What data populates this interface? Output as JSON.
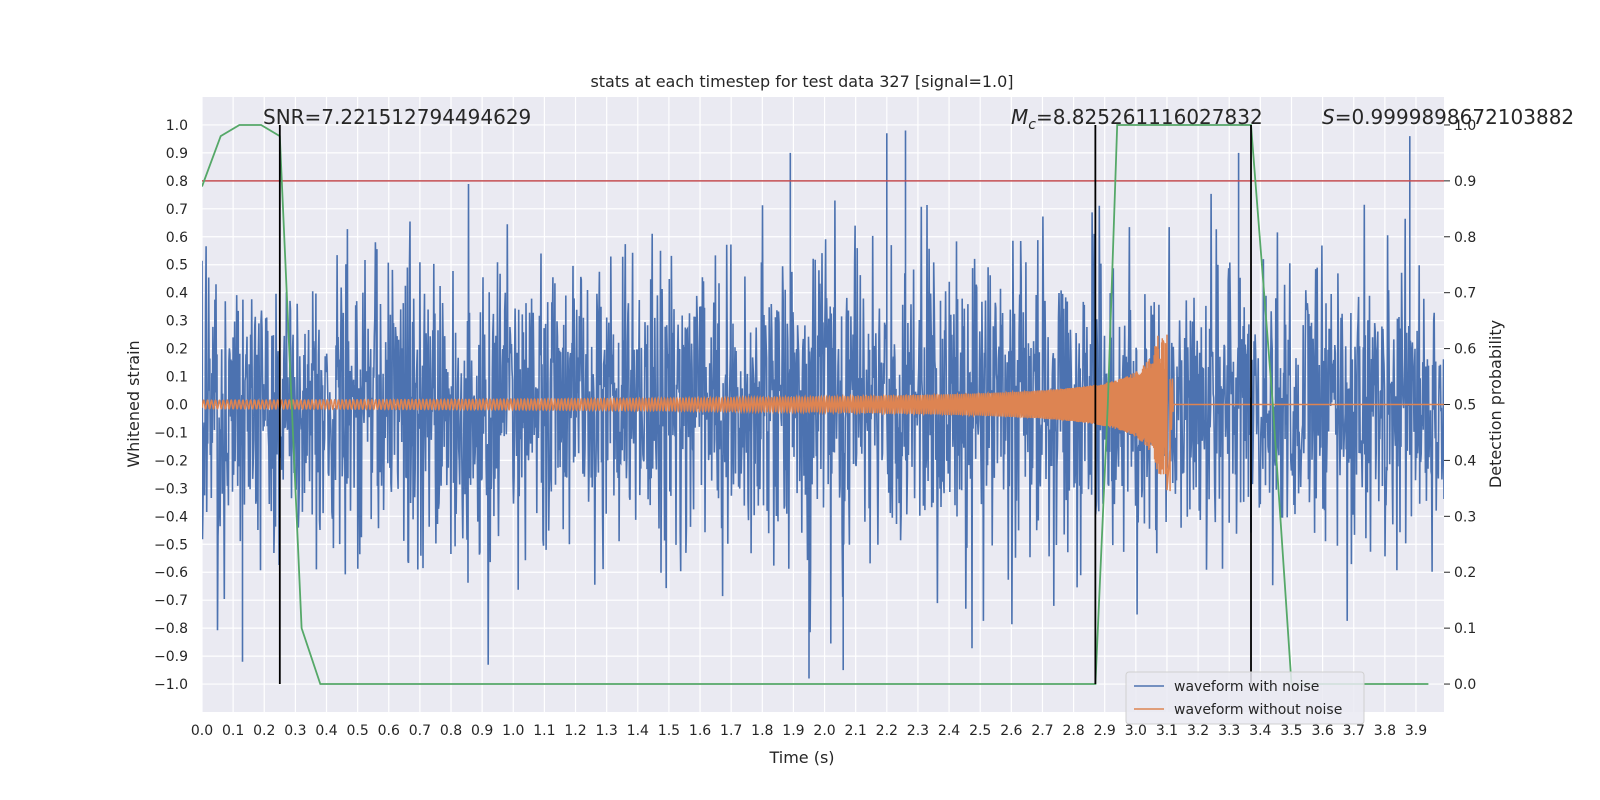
{
  "chart_data": {
    "type": "line",
    "title": "stats at each timestep for test data 327 [signal=1.0]",
    "xlabel": "Time (s)",
    "ylabel": "Whitened strain",
    "ylabel_right": "Detection probability",
    "xlim": [
      0.0,
      3.99
    ],
    "ylim": [
      -1.1,
      1.1
    ],
    "ylim_right": [
      -0.05,
      1.05
    ],
    "x_ticks": [
      0.0,
      0.1,
      0.2,
      0.3,
      0.4,
      0.5,
      0.6,
      0.7,
      0.8,
      0.9,
      1.0,
      1.1,
      1.2,
      1.3,
      1.4,
      1.5,
      1.6,
      1.7,
      1.8,
      1.9,
      2.0,
      2.1,
      2.2,
      2.3,
      2.4,
      2.5,
      2.6,
      2.7,
      2.8,
      2.9,
      3.0,
      3.1,
      3.2,
      3.3,
      3.4,
      3.5,
      3.6,
      3.7,
      3.8,
      3.9
    ],
    "x_tick_labels": [
      "0.0",
      "0.1",
      "0.2",
      "0.3",
      "0.4",
      "0.5",
      "0.6",
      "0.7",
      "0.8",
      "0.9",
      "1.0",
      "1.1",
      "1.2",
      "1.3",
      "1.4",
      "1.5",
      "1.6",
      "1.7",
      "1.8",
      "1.9",
      "2.0",
      "2.1",
      "2.2",
      "2.3",
      "2.4",
      "2.5",
      "2.6",
      "2.7",
      "2.8",
      "2.9",
      "3.0",
      "3.1",
      "3.2",
      "3.3",
      "3.4",
      "3.5",
      "3.6",
      "3.7",
      "3.8",
      "3.9"
    ],
    "y_ticks": [
      1.0,
      0.9,
      0.8,
      0.7,
      0.6,
      0.5,
      0.4,
      0.3,
      0.2,
      0.1,
      0.0,
      -0.1,
      -0.2,
      -0.3,
      -0.4,
      -0.5,
      -0.6,
      -0.7,
      -0.8,
      -0.9,
      -1.0
    ],
    "y_tick_labels": [
      "1.0",
      "0.9",
      "0.8",
      "0.7",
      "0.6",
      "0.5",
      "0.4",
      "0.3",
      "0.2",
      "0.1",
      "0.0",
      "−0.1",
      "−0.2",
      "−0.3",
      "−0.4",
      "−0.5",
      "−0.6",
      "−0.7",
      "−0.8",
      "−0.9",
      "−1.0"
    ],
    "y_right_ticks": [
      1.0,
      0.9,
      0.8,
      0.7,
      0.6,
      0.5,
      0.4,
      0.3,
      0.2,
      0.1,
      0.0
    ],
    "y_right_tick_labels": [
      "1.0",
      "0.9",
      "0.8",
      "0.7",
      "0.6",
      "0.5",
      "0.4",
      "0.3",
      "0.2",
      "0.1",
      "0.0"
    ],
    "series": [
      {
        "name": "waveform with noise",
        "color": "#4c72b0",
        "kind": "noise",
        "x_range": [
          0.0,
          3.99
        ],
        "amplitude_typical": 0.55,
        "peak_points": [
          [
            0.13,
            -0.92
          ],
          [
            1.95,
            -0.98
          ],
          [
            1.89,
            0.9
          ],
          [
            2.2,
            0.97
          ],
          [
            2.26,
            0.98
          ],
          [
            3.33,
            0.9
          ],
          [
            3.88,
            0.96
          ],
          [
            2.06,
            -0.95
          ]
        ]
      },
      {
        "name": "waveform without noise",
        "color": "#dd8452",
        "kind": "chirp",
        "x_range": [
          0.0,
          3.99
        ],
        "merger_time": 3.1,
        "amplitude_start": 0.015,
        "amplitude_peak": 0.25,
        "peak_point": [
          3.1,
          0.25
        ],
        "trough_point": [
          3.11,
          -0.31
        ]
      },
      {
        "name": "detection probability",
        "color": "#55a868",
        "axis": "right",
        "x": [
          0.0,
          0.06,
          0.12,
          0.19,
          0.25,
          0.32,
          0.38,
          0.44,
          0.5,
          0.57,
          0.63,
          0.7,
          0.76,
          0.82,
          0.89,
          0.95,
          1.01,
          1.08,
          1.14,
          1.2,
          1.27,
          1.33,
          1.39,
          1.46,
          1.52,
          1.58,
          1.65,
          1.71,
          1.77,
          1.84,
          1.9,
          1.96,
          2.03,
          2.09,
          2.15,
          2.22,
          2.28,
          2.34,
          2.41,
          2.47,
          2.53,
          2.6,
          2.66,
          2.72,
          2.79,
          2.85,
          2.87,
          2.91,
          2.94,
          3.0,
          3.06,
          3.12,
          3.18,
          3.25,
          3.31,
          3.37,
          3.44,
          3.5,
          3.56,
          3.63,
          3.69,
          3.75,
          3.82,
          3.88,
          3.94
        ],
        "y": [
          0.89,
          0.98,
          1.0,
          1.0,
          0.98,
          0.1,
          0.0,
          0.0,
          0.0,
          0.0,
          0.0,
          0.0,
          0.0,
          0.0,
          0.0,
          0.0,
          0.0,
          0.0,
          0.0,
          0.0,
          0.0,
          0.0,
          0.0,
          0.0,
          0.0,
          0.0,
          0.0,
          0.0,
          0.0,
          0.0,
          0.0,
          0.0,
          0.0,
          0.0,
          0.0,
          0.0,
          0.0,
          0.0,
          0.0,
          0.0,
          0.0,
          0.0,
          0.0,
          0.0,
          0.0,
          0.0,
          0.0,
          0.5,
          1.0,
          1.0,
          1.0,
          1.0,
          1.0,
          1.0,
          1.0,
          1.0,
          0.5,
          0.0,
          0.0,
          0.0,
          0.0,
          0.0,
          0.0,
          0.0,
          0.0
        ]
      }
    ],
    "threshold_line": {
      "value": 0.9,
      "axis": "right",
      "color": "#c44e52"
    },
    "vertical_markers": [
      0.25,
      2.87,
      3.37
    ],
    "annotations": {
      "snr": "SNR=7.221512794494629",
      "mc_symbol": "M",
      "mc_sub": "c",
      "mc_value": "=8.825261116027832",
      "s_symbol": "S",
      "s_value": "=0.9999898672103882"
    },
    "legend": {
      "location": "lower right",
      "entries": [
        "waveform with noise",
        "waveform without noise"
      ]
    },
    "grid": true
  }
}
